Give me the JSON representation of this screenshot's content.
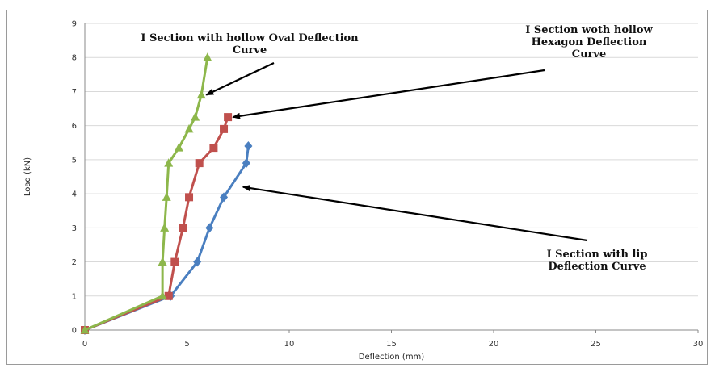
{
  "chart_data": {
    "type": "line",
    "title": "",
    "xlabel": "Deflection (mm)",
    "ylabel": "Load (kN)",
    "xlim": [
      0,
      30
    ],
    "ylim": [
      0,
      9
    ],
    "xticks": [
      "0",
      "5",
      "10",
      "15",
      "20",
      "25",
      "30"
    ],
    "yticks": [
      "0",
      "1",
      "2",
      "3",
      "4",
      "5",
      "6",
      "7",
      "8",
      "9"
    ],
    "grid": "horizontal",
    "series": [
      {
        "key": "lip",
        "color": "#4a7fc0",
        "marker": "diamond",
        "points": [
          [
            0,
            0
          ],
          [
            4.2,
            1.0
          ],
          [
            5.5,
            2.0
          ],
          [
            6.1,
            3.0
          ],
          [
            6.8,
            3.9
          ],
          [
            7.9,
            4.9
          ],
          [
            8.0,
            5.4
          ]
        ]
      },
      {
        "key": "hexagon",
        "color": "#c0504d",
        "marker": "square",
        "points": [
          [
            0,
            0
          ],
          [
            4.1,
            1.0
          ],
          [
            4.4,
            2.0
          ],
          [
            4.8,
            3.0
          ],
          [
            5.1,
            3.9
          ],
          [
            5.6,
            4.9
          ],
          [
            6.3,
            5.35
          ],
          [
            6.8,
            5.9
          ],
          [
            7.0,
            6.25
          ]
        ]
      },
      {
        "key": "oval",
        "color": "#8db74b",
        "marker": "triangle",
        "points": [
          [
            0,
            0
          ],
          [
            3.8,
            1.0
          ],
          [
            3.8,
            2.0
          ],
          [
            3.9,
            3.0
          ],
          [
            4.0,
            3.9
          ],
          [
            4.1,
            4.9
          ],
          [
            4.6,
            5.35
          ],
          [
            5.1,
            5.9
          ],
          [
            5.4,
            6.25
          ],
          [
            5.7,
            6.9
          ],
          [
            6.0,
            8.0
          ]
        ]
      }
    ],
    "annotations": [
      {
        "name": "annotation-oval",
        "lines": [
          "I Section with hollow Oval Deflection",
          "Curve"
        ],
        "arrow_to": [
          5.7,
          6.9
        ]
      },
      {
        "name": "annotation-hexagon",
        "lines": [
          "I Section woth hollow",
          "Hexagon Deflection",
          "Curve"
        ],
        "arrow_to": [
          7.0,
          6.25
        ]
      },
      {
        "name": "annotation-lip",
        "lines": [
          "I Section with lip",
          "Deflection Curve"
        ],
        "arrow_to": [
          7.5,
          4.2
        ]
      }
    ]
  }
}
